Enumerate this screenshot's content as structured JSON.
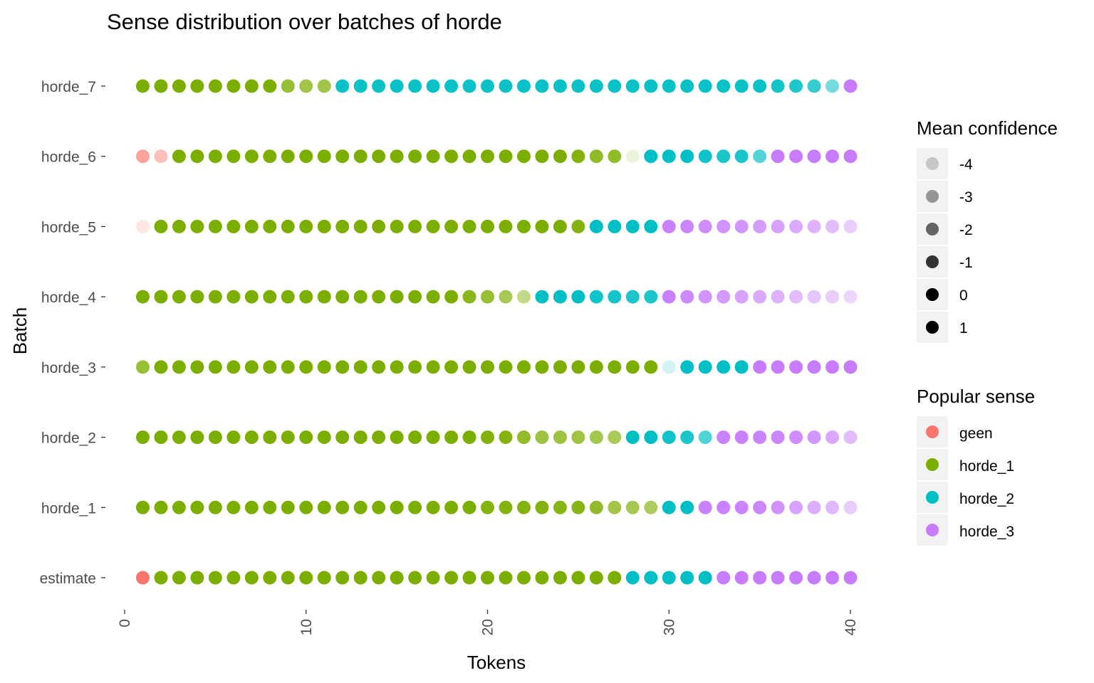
{
  "chart_data": {
    "type": "scatter",
    "title": "Sense distribution over batches of horde",
    "xlabel": "Tokens",
    "ylabel": "Batch",
    "xlim": [
      0,
      40
    ],
    "x_ticks": [
      "0",
      "10",
      "20",
      "30",
      "40"
    ],
    "x": [
      1,
      2,
      3,
      4,
      5,
      6,
      7,
      8,
      9,
      10,
      11,
      12,
      13,
      14,
      15,
      16,
      17,
      18,
      19,
      20,
      21,
      22,
      23,
      24,
      25,
      26,
      27,
      28,
      29,
      30,
      31,
      32,
      33,
      34,
      35,
      36,
      37,
      38,
      39,
      40
    ],
    "categories": [
      "estimate",
      "horde_1",
      "horde_2",
      "horde_3",
      "horde_4",
      "horde_5",
      "horde_6",
      "horde_7"
    ],
    "grid": false,
    "legend_position": "right",
    "sense_colors": {
      "geen": "#F8766D",
      "horde_1": "#7CAE00",
      "horde_2": "#00BFC4",
      "horde_3": "#C77CFF"
    },
    "series": [
      {
        "batch": "estimate",
        "sense": [
          "geen",
          "horde_1",
          "horde_1",
          "horde_1",
          "horde_1",
          "horde_1",
          "horde_1",
          "horde_1",
          "horde_1",
          "horde_1",
          "horde_1",
          "horde_1",
          "horde_1",
          "horde_1",
          "horde_1",
          "horde_1",
          "horde_1",
          "horde_1",
          "horde_1",
          "horde_1",
          "horde_1",
          "horde_1",
          "horde_1",
          "horde_1",
          "horde_1",
          "horde_1",
          "horde_1",
          "horde_2",
          "horde_2",
          "horde_2",
          "horde_2",
          "horde_2",
          "horde_3",
          "horde_3",
          "horde_3",
          "horde_3",
          "horde_3",
          "horde_3",
          "horde_3",
          "horde_3"
        ],
        "confidence": [
          0,
          0,
          0,
          0,
          0,
          0,
          0,
          0,
          0,
          0,
          0,
          0,
          0,
          0,
          0,
          0,
          0,
          0,
          0,
          0,
          0,
          0,
          0,
          0,
          0,
          0,
          0,
          0,
          0,
          0,
          0,
          0,
          0,
          0,
          0,
          0,
          0,
          0,
          0,
          0
        ]
      },
      {
        "batch": "horde_1",
        "sense": [
          "horde_1",
          "horde_1",
          "horde_1",
          "horde_1",
          "horde_1",
          "horde_1",
          "horde_1",
          "horde_1",
          "horde_1",
          "horde_1",
          "horde_1",
          "horde_1",
          "horde_1",
          "horde_1",
          "horde_1",
          "horde_1",
          "horde_1",
          "horde_1",
          "horde_1",
          "horde_1",
          "horde_1",
          "horde_1",
          "horde_1",
          "horde_1",
          "horde_1",
          "horde_1",
          "horde_1",
          "horde_1",
          "horde_1",
          "horde_2",
          "horde_2",
          "horde_3",
          "horde_3",
          "horde_3",
          "horde_3",
          "horde_3",
          "horde_3",
          "horde_3",
          "horde_3",
          "horde_3"
        ],
        "confidence": [
          0,
          0,
          0,
          0,
          0,
          0,
          0,
          0,
          0,
          0,
          0,
          0,
          0,
          0,
          0,
          0,
          0,
          0,
          0,
          -0.3,
          -0.3,
          -0.3,
          -0.3,
          -0.4,
          -0.4,
          -0.8,
          -1.4,
          -1.6,
          -1.8,
          0,
          0,
          -0.2,
          -0.2,
          -0.3,
          -0.4,
          -0.8,
          -1.4,
          -1.8,
          -2.2,
          -3.0
        ]
      },
      {
        "batch": "horde_2",
        "sense": [
          "horde_1",
          "horde_1",
          "horde_1",
          "horde_1",
          "horde_1",
          "horde_1",
          "horde_1",
          "horde_1",
          "horde_1",
          "horde_1",
          "horde_1",
          "horde_1",
          "horde_1",
          "horde_1",
          "horde_1",
          "horde_1",
          "horde_1",
          "horde_1",
          "horde_1",
          "horde_1",
          "horde_1",
          "horde_1",
          "horde_1",
          "horde_1",
          "horde_1",
          "horde_1",
          "horde_1",
          "horde_2",
          "horde_2",
          "horde_2",
          "horde_2",
          "horde_2",
          "horde_3",
          "horde_3",
          "horde_3",
          "horde_3",
          "horde_3",
          "horde_3",
          "horde_3",
          "horde_3"
        ],
        "confidence": [
          0,
          0,
          0,
          0,
          0,
          0,
          0,
          0,
          0,
          0,
          0,
          0,
          0,
          0,
          0,
          0,
          0,
          0,
          0,
          -0.2,
          -0.3,
          -0.8,
          -1.2,
          -1.2,
          -1.3,
          -1.5,
          -1.7,
          0,
          0,
          -0.3,
          -0.5,
          -1.5,
          -0.2,
          -0.2,
          -0.3,
          -0.4,
          -0.6,
          -1.0,
          -1.6,
          -2.4
        ]
      },
      {
        "batch": "horde_3",
        "sense": [
          "horde_1",
          "horde_1",
          "horde_1",
          "horde_1",
          "horde_1",
          "horde_1",
          "horde_1",
          "horde_1",
          "horde_1",
          "horde_1",
          "horde_1",
          "horde_1",
          "horde_1",
          "horde_1",
          "horde_1",
          "horde_1",
          "horde_1",
          "horde_1",
          "horde_1",
          "horde_1",
          "horde_1",
          "horde_1",
          "horde_1",
          "horde_1",
          "horde_1",
          "horde_1",
          "horde_1",
          "horde_1",
          "horde_1",
          "horde_2",
          "horde_2",
          "horde_2",
          "horde_2",
          "horde_2",
          "horde_3",
          "horde_3",
          "horde_3",
          "horde_3",
          "horde_3",
          "horde_3"
        ],
        "confidence": [
          -1.0,
          0,
          0,
          0,
          0,
          0,
          0,
          0,
          0,
          0,
          0,
          0,
          0,
          0,
          0,
          0,
          0,
          0,
          0,
          0,
          0,
          0,
          0,
          0,
          0,
          0,
          0,
          0,
          0,
          -4.0,
          0,
          0,
          0,
          0,
          0,
          0,
          0,
          0,
          0,
          0
        ]
      },
      {
        "batch": "horde_4",
        "sense": [
          "horde_1",
          "horde_1",
          "horde_1",
          "horde_1",
          "horde_1",
          "horde_1",
          "horde_1",
          "horde_1",
          "horde_1",
          "horde_1",
          "horde_1",
          "horde_1",
          "horde_1",
          "horde_1",
          "horde_1",
          "horde_1",
          "horde_1",
          "horde_1",
          "horde_1",
          "horde_1",
          "horde_1",
          "horde_1",
          "horde_2",
          "horde_2",
          "horde_2",
          "horde_2",
          "horde_2",
          "horde_2",
          "horde_2",
          "horde_3",
          "horde_3",
          "horde_3",
          "horde_3",
          "horde_3",
          "horde_3",
          "horde_3",
          "horde_3",
          "horde_3",
          "horde_3",
          "horde_3"
        ],
        "confidence": [
          0,
          0,
          0,
          0,
          0,
          0,
          0,
          0,
          0,
          0,
          0,
          0,
          0,
          0,
          0,
          0,
          0,
          0,
          -0.5,
          -1.0,
          -1.6,
          -2.6,
          0,
          0,
          0,
          -0.3,
          -0.4,
          -0.5,
          -0.5,
          -0.2,
          -0.5,
          -0.9,
          -1.1,
          -1.4,
          -1.7,
          -2.0,
          -2.4,
          -2.7,
          -3.0,
          -3.3
        ]
      },
      {
        "batch": "horde_5",
        "sense": [
          "geen",
          "horde_1",
          "horde_1",
          "horde_1",
          "horde_1",
          "horde_1",
          "horde_1",
          "horde_1",
          "horde_1",
          "horde_1",
          "horde_1",
          "horde_1",
          "horde_1",
          "horde_1",
          "horde_1",
          "horde_1",
          "horde_1",
          "horde_1",
          "horde_1",
          "horde_1",
          "horde_1",
          "horde_1",
          "horde_1",
          "horde_1",
          "horde_1",
          "horde_2",
          "horde_2",
          "horde_2",
          "horde_2",
          "horde_3",
          "horde_3",
          "horde_3",
          "horde_3",
          "horde_3",
          "horde_3",
          "horde_3",
          "horde_3",
          "horde_3",
          "horde_3",
          "horde_3"
        ],
        "confidence": [
          -4.0,
          0,
          0,
          0,
          0,
          0,
          0,
          0,
          0,
          0,
          0,
          0,
          0,
          0,
          0,
          0,
          0,
          0,
          0,
          0,
          0,
          0,
          0,
          0,
          -0.3,
          0,
          0,
          0,
          0,
          -0.2,
          -0.4,
          -0.6,
          -0.8,
          -1.0,
          -1.2,
          -1.4,
          -1.7,
          -2.0,
          -2.4,
          -3.0
        ]
      },
      {
        "batch": "horde_6",
        "sense": [
          "geen",
          "geen",
          "horde_1",
          "horde_1",
          "horde_1",
          "horde_1",
          "horde_1",
          "horde_1",
          "horde_1",
          "horde_1",
          "horde_1",
          "horde_1",
          "horde_1",
          "horde_1",
          "horde_1",
          "horde_1",
          "horde_1",
          "horde_1",
          "horde_1",
          "horde_1",
          "horde_1",
          "horde_1",
          "horde_1",
          "horde_1",
          "horde_1",
          "horde_1",
          "horde_1",
          "horde_1",
          "horde_2",
          "horde_2",
          "horde_2",
          "horde_2",
          "horde_2",
          "horde_2",
          "horde_2",
          "horde_3",
          "horde_3",
          "horde_3",
          "horde_3",
          "horde_3"
        ],
        "confidence": [
          -1.6,
          -2.6,
          0,
          0,
          0,
          0,
          0,
          0,
          0,
          0,
          0,
          0,
          0,
          0,
          0,
          0,
          0,
          0,
          0,
          0,
          0,
          0,
          0,
          0,
          -0.3,
          -0.8,
          -0.8,
          -4.2,
          0,
          0,
          0,
          -0.3,
          -0.5,
          -0.5,
          -1.6,
          0,
          0,
          0,
          0,
          0
        ]
      },
      {
        "batch": "horde_7",
        "sense": [
          "horde_1",
          "horde_1",
          "horde_1",
          "horde_1",
          "horde_1",
          "horde_1",
          "horde_1",
          "horde_1",
          "horde_1",
          "horde_1",
          "horde_1",
          "horde_2",
          "horde_2",
          "horde_2",
          "horde_2",
          "horde_2",
          "horde_2",
          "horde_2",
          "horde_2",
          "horde_2",
          "horde_2",
          "horde_2",
          "horde_2",
          "horde_2",
          "horde_2",
          "horde_2",
          "horde_2",
          "horde_2",
          "horde_2",
          "horde_2",
          "horde_2",
          "horde_2",
          "horde_2",
          "horde_2",
          "horde_2",
          "horde_2",
          "horde_2",
          "horde_2",
          "horde_2",
          "horde_3"
        ],
        "confidence": [
          0,
          0,
          0,
          0,
          0,
          0,
          0,
          0,
          -1.0,
          -1.4,
          -1.4,
          -0.2,
          -0.2,
          -0.2,
          -0.2,
          -0.2,
          -0.2,
          -0.2,
          -0.2,
          -0.2,
          -0.2,
          -0.2,
          -0.2,
          -0.2,
          -0.2,
          -0.2,
          -0.2,
          -0.2,
          -0.2,
          -0.2,
          -0.2,
          -0.2,
          -0.2,
          -0.2,
          -0.2,
          -0.4,
          -0.6,
          -1.0,
          -2.2,
          0
        ]
      }
    ],
    "legends": {
      "confidence": {
        "title": "Mean confidence",
        "labels": [
          "-4",
          "-3",
          "-2",
          "-1",
          "0",
          "1"
        ],
        "values": [
          -4,
          -3,
          -2,
          -1,
          0,
          1
        ]
      },
      "sense": {
        "title": "Popular sense",
        "labels": [
          "geen",
          "horde_1",
          "horde_2",
          "horde_3"
        ]
      }
    }
  }
}
